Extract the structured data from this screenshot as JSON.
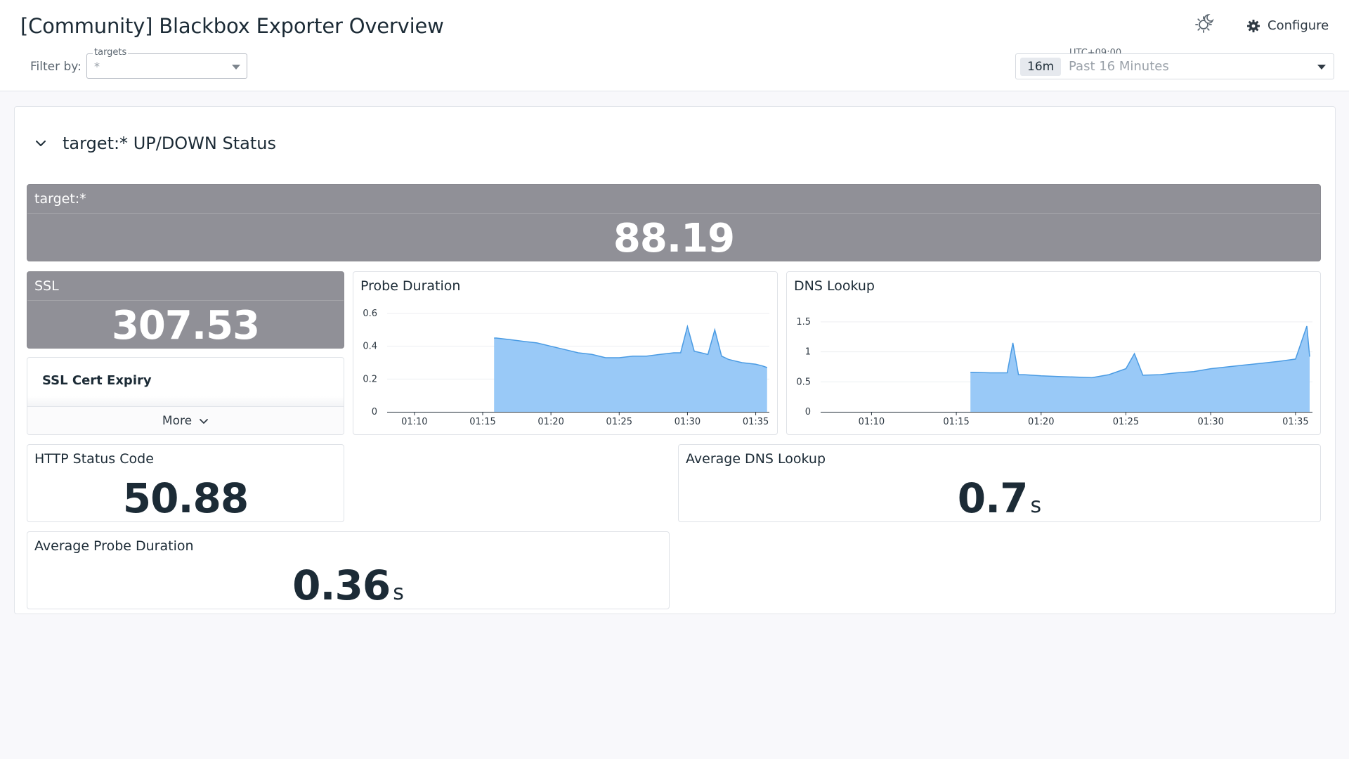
{
  "header": {
    "title": "[Community] Blackbox Exporter Overview",
    "filter_label": "Filter by:",
    "filter": {
      "legend": "targets",
      "value": "*"
    },
    "configure_label": "Configure",
    "timezone": "UTC+09:00",
    "time_badge": "16m",
    "time_range": "Past 16 Minutes",
    "icons": {
      "theme": "sun-moon-icon",
      "configure": "gear-icon",
      "dropdown": "caret-down-icon"
    }
  },
  "group": {
    "title": "target:* UP/DOWN Status",
    "toggle_icon": "chevron-down-icon"
  },
  "widgets": {
    "target": {
      "title": "target:*",
      "value": "88.19"
    },
    "ssl": {
      "title": "SSL",
      "value": "307.53"
    },
    "ssl_expiry": {
      "title": "SSL Cert Expiry",
      "more_label": "More"
    },
    "http_status": {
      "title": "HTTP Status Code",
      "value": "50.88"
    },
    "avg_dns": {
      "title": "Average DNS Lookup",
      "value": "0.7",
      "unit": "s"
    },
    "avg_probe": {
      "title": "Average Probe Duration",
      "value": "0.36",
      "unit": "s"
    },
    "probe_duration": {
      "title": "Probe Duration"
    },
    "dns_lookup": {
      "title": "DNS Lookup"
    }
  },
  "colors": {
    "area_fill": "#99c9f7",
    "area_line": "#4a9be3",
    "stat_gray": "#909097"
  },
  "chart_data": [
    {
      "type": "area",
      "title": "Probe Duration",
      "xlabel": "",
      "ylabel": "",
      "x_ticks": [
        "01:10",
        "01:15",
        "01:20",
        "01:25",
        "01:30",
        "01:35"
      ],
      "y_ticks": [
        "0",
        "0.2",
        "0.4",
        "0.6"
      ],
      "xlim": [
        "01:08",
        "01:36"
      ],
      "ylim": [
        0,
        0.6
      ],
      "grid": true,
      "series": [
        {
          "x": [
            "01:15:50",
            "01:16",
            "01:17",
            "01:18",
            "01:19",
            "01:20",
            "01:21",
            "01:22",
            "01:23",
            "01:24",
            "01:25",
            "01:26",
            "01:27",
            "01:28",
            "01:29",
            "01:29:30",
            "01:30",
            "01:30:30",
            "01:31",
            "01:31:30",
            "01:32",
            "01:32:30",
            "01:33",
            "01:33:30",
            "01:34",
            "01:35",
            "01:35:30",
            "01:35:50"
          ],
          "y": [
            0.45,
            0.45,
            0.44,
            0.43,
            0.42,
            0.4,
            0.38,
            0.36,
            0.35,
            0.33,
            0.33,
            0.34,
            0.34,
            0.35,
            0.36,
            0.36,
            0.52,
            0.37,
            0.36,
            0.35,
            0.5,
            0.34,
            0.32,
            0.31,
            0.3,
            0.29,
            0.28,
            0.27
          ]
        }
      ]
    },
    {
      "type": "area",
      "title": "DNS Lookup",
      "xlabel": "",
      "ylabel": "",
      "x_ticks": [
        "01:10",
        "01:15",
        "01:20",
        "01:25",
        "01:30",
        "01:35"
      ],
      "y_ticks": [
        "0",
        "0.5",
        "1",
        "1.5"
      ],
      "xlim": [
        "01:07",
        "01:36"
      ],
      "ylim": [
        0,
        1.5
      ],
      "grid": true,
      "series": [
        {
          "x": [
            "01:15:50",
            "01:16",
            "01:17",
            "01:18",
            "01:18:20",
            "01:18:40",
            "01:19",
            "01:20",
            "01:21",
            "01:22",
            "01:23",
            "01:24",
            "01:25",
            "01:25:30",
            "01:26",
            "01:27",
            "01:28",
            "01:29",
            "01:30",
            "01:31",
            "01:32",
            "01:33",
            "01:34",
            "01:35",
            "01:35:40",
            "01:35:50"
          ],
          "y": [
            0.66,
            0.66,
            0.65,
            0.65,
            1.15,
            0.62,
            0.62,
            0.6,
            0.59,
            0.58,
            0.57,
            0.62,
            0.72,
            0.97,
            0.61,
            0.62,
            0.65,
            0.67,
            0.72,
            0.75,
            0.78,
            0.81,
            0.84,
            0.88,
            1.43,
            0.92
          ]
        }
      ]
    }
  ]
}
